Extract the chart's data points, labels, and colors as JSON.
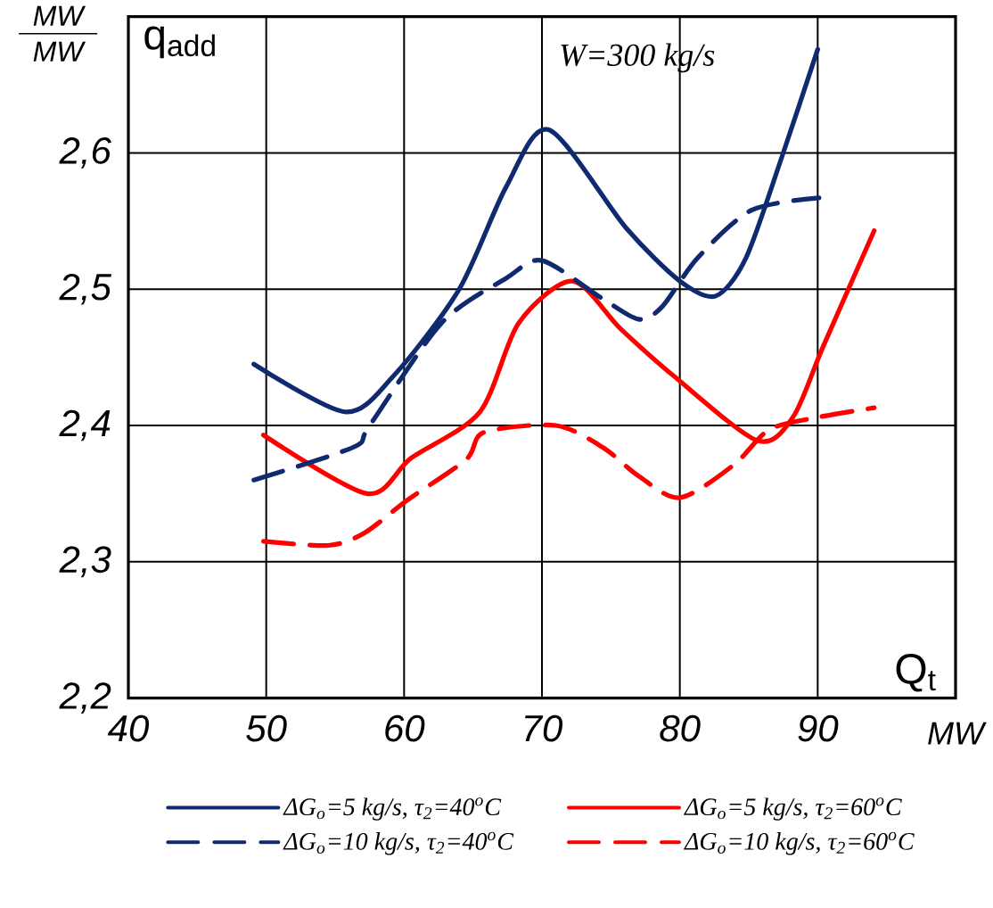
{
  "chart_data": {
    "type": "line",
    "xlabel": "Q$_{t}$",
    "ylabel": "q$_{add}$",
    "annotations": [
      "W=300 kg/s",
      "MW",
      "MW",
      "MW"
    ],
    "xlim": [
      40,
      100
    ],
    "ylim": [
      2.2,
      2.7
    ],
    "xticks": [
      40,
      50,
      60,
      70,
      80,
      90
    ],
    "yticks": [
      {
        "value": 2.2,
        "label": "2,2"
      },
      {
        "value": 2.3,
        "label": "2,3"
      },
      {
        "value": 2.4,
        "label": "2,4"
      },
      {
        "value": 2.5,
        "label": "2,5"
      },
      {
        "value": 2.6,
        "label": "2,6"
      }
    ],
    "grid": true,
    "legend": "bottom",
    "series": [
      {
        "name": "ΔG$_{o}$=5 kg/s, τ$_{2}$=40$^{o}$C",
        "color": "#0f2a6e",
        "line_style": "solid",
        "x": [
          49.1,
          55.7,
          59.2,
          64,
          67.4,
          70.5,
          76.1,
          80,
          82.6,
          84.8,
          87.4,
          90
        ],
        "values": [
          2.445,
          2.41,
          2.436,
          2.5,
          2.575,
          2.617,
          2.545,
          2.506,
          2.495,
          2.523,
          2.597,
          2.676
        ]
      },
      {
        "name": "ΔG$_{o}$=5 kg/s, τ$_{2}$=60$^{o}$C",
        "color": "#ff0000",
        "line_style": "solid",
        "x": [
          49.8,
          57.3,
          60.5,
          65.5,
          68.3,
          72.2,
          75.7,
          79.6,
          85.6,
          88.2,
          90.4,
          94.1
        ],
        "values": [
          2.393,
          2.35,
          2.376,
          2.41,
          2.475,
          2.506,
          2.471,
          2.436,
          2.389,
          2.406,
          2.458,
          2.543
        ]
      },
      {
        "name": "ΔG$_{o}$=10 kg/s, τ$_{2}$=40$^{o}$C",
        "color": "#0f2a6e",
        "line_style": "dashed",
        "x": [
          49.1,
          56.3,
          57.5,
          62.7,
          67.4,
          70,
          74.4,
          77,
          78.7,
          81.3,
          85.2,
          90.1
        ],
        "values": [
          2.36,
          2.384,
          2.4,
          2.475,
          2.508,
          2.521,
          2.493,
          2.478,
          2.487,
          2.523,
          2.558,
          2.567
        ]
      },
      {
        "name": "ΔG$_{o}$=10 kg/s, τ$_{2}$=60$^{o}$C",
        "color": "#ff0000",
        "line_style": "dashed",
        "x": [
          49.8,
          54.5,
          57.1,
          60.2,
          64.5,
          65.8,
          71,
          74.4,
          77,
          80,
          83.9,
          86.5,
          90,
          94.1
        ],
        "values": [
          2.315,
          2.312,
          2.321,
          2.345,
          2.375,
          2.395,
          2.4,
          2.384,
          2.363,
          2.347,
          2.371,
          2.397,
          2.406,
          2.413
        ]
      }
    ]
  }
}
